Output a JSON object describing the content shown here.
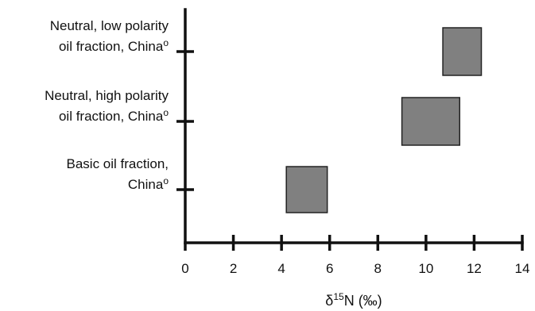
{
  "chart_data": {
    "type": "range",
    "categories": [
      {
        "lines": [
          "Neutral, low polarity",
          "oil fraction, China"
        ],
        "superscript": "o"
      },
      {
        "lines": [
          "Neutral, high polarity",
          "oil fraction, China"
        ],
        "superscript": "o"
      },
      {
        "lines": [
          "Basic oil fraction,",
          "China"
        ],
        "superscript": "o"
      }
    ],
    "ranges": [
      {
        "min": 10.7,
        "max": 12.3
      },
      {
        "min": 9.0,
        "max": 11.4
      },
      {
        "min": 4.2,
        "max": 5.9
      }
    ],
    "x_ticks": [
      0,
      2,
      4,
      6,
      8,
      10,
      12,
      14
    ],
    "xlim": [
      0,
      14
    ],
    "xlabel": {
      "prefix": "δ",
      "superscript": "15",
      "suffix": "N (‰)"
    },
    "grid": false,
    "box_color": "#808080",
    "axis_color": "#111111"
  }
}
